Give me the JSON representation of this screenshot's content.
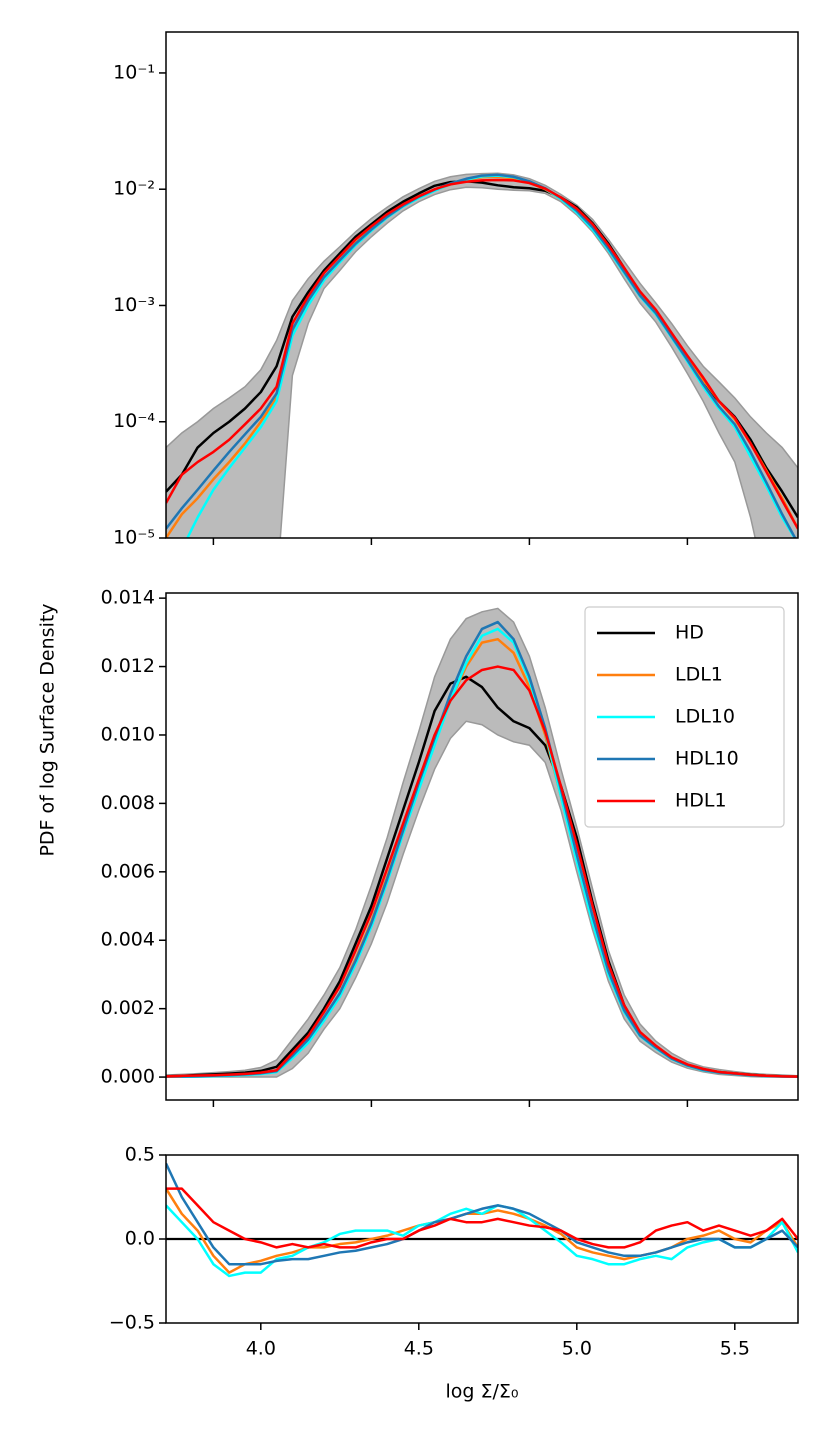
{
  "chart_data": {
    "type": "line",
    "xlabel": "log Σ/Σ₀",
    "ylabel": "PDF of log Surface Density",
    "xlim": [
      3.7,
      5.7
    ],
    "x": [
      3.7,
      3.75,
      3.8,
      3.85,
      3.9,
      3.95,
      4.0,
      4.05,
      4.1,
      4.15,
      4.2,
      4.25,
      4.3,
      4.35,
      4.4,
      4.45,
      4.5,
      4.55,
      4.6,
      4.65,
      4.7,
      4.75,
      4.8,
      4.85,
      4.9,
      4.95,
      5.0,
      5.05,
      5.1,
      5.15,
      5.2,
      5.25,
      5.3,
      5.35,
      5.4,
      5.45,
      5.5,
      5.55,
      5.6,
      5.65,
      5.7
    ],
    "band": {
      "color": "#bbbbbb",
      "lower": [
        1e-06,
        1e-06,
        1e-06,
        1e-06,
        1e-06,
        1e-06,
        1e-06,
        1e-06,
        0.00025,
        0.0007,
        0.0014,
        0.002,
        0.0029,
        0.0039,
        0.0051,
        0.0065,
        0.0078,
        0.009,
        0.0099,
        0.0104,
        0.0103,
        0.01,
        0.0098,
        0.0097,
        0.0092,
        0.0078,
        0.006,
        0.0043,
        0.0028,
        0.0017,
        0.00105,
        0.00072,
        0.00044,
        0.00026,
        0.00015,
        8e-05,
        4.5e-05,
        1.5e-05,
        1e-06,
        1e-06,
        1e-06
      ],
      "upper": [
        6e-05,
        8e-05,
        0.0001,
        0.00013,
        0.00016,
        0.0002,
        0.00028,
        0.0005,
        0.0011,
        0.0017,
        0.0024,
        0.0032,
        0.0043,
        0.0056,
        0.007,
        0.0086,
        0.0101,
        0.0117,
        0.0128,
        0.0134,
        0.0136,
        0.0137,
        0.0133,
        0.0123,
        0.0108,
        0.009,
        0.0073,
        0.0055,
        0.0037,
        0.0024,
        0.00155,
        0.00105,
        0.0007,
        0.00045,
        0.0003,
        0.00022,
        0.00016,
        0.00011,
        8e-05,
        6e-05,
        4e-05
      ]
    },
    "series": [
      {
        "name": "HD",
        "color": "#000000",
        "values": [
          2.5e-05,
          3.5e-05,
          6e-05,
          8e-05,
          0.0001,
          0.00013,
          0.00018,
          0.0003,
          0.0008,
          0.0013,
          0.002,
          0.0028,
          0.0039,
          0.005,
          0.0064,
          0.0078,
          0.0092,
          0.0107,
          0.0115,
          0.0117,
          0.0114,
          0.0108,
          0.0104,
          0.0102,
          0.0097,
          0.0085,
          0.007,
          0.0051,
          0.0034,
          0.0021,
          0.0013,
          0.0009,
          0.00055,
          0.00034,
          0.00021,
          0.00015,
          0.00011,
          7e-05,
          4e-05,
          2.5e-05,
          1.5e-05
        ]
      },
      {
        "name": "LDL1",
        "color": "#ff7f0e",
        "values": [
          1e-05,
          1.6e-05,
          2.2e-05,
          3.2e-05,
          4.5e-05,
          6.5e-05,
          0.0001,
          0.00016,
          0.00058,
          0.00108,
          0.00174,
          0.00245,
          0.00345,
          0.00455,
          0.00585,
          0.0072,
          0.0085,
          0.0098,
          0.011,
          0.012,
          0.0127,
          0.0128,
          0.0124,
          0.0114,
          0.01,
          0.0082,
          0.0064,
          0.0047,
          0.0031,
          0.00196,
          0.00124,
          0.00088,
          0.00057,
          0.00036,
          0.00023,
          0.00015,
          0.000105,
          6.5e-05,
          3.8e-05,
          2.2e-05,
          1.2e-05
        ],
        "residuals": [
          0.3,
          0.15,
          0.05,
          -0.1,
          -0.2,
          -0.15,
          -0.13,
          -0.1,
          -0.08,
          -0.05,
          -0.05,
          -0.03,
          -0.02,
          0,
          0.02,
          0.05,
          0.08,
          0.1,
          0.12,
          0.15,
          0.15,
          0.17,
          0.15,
          0.12,
          0.08,
          0.03,
          -0.05,
          -0.08,
          -0.1,
          -0.12,
          -0.1,
          -0.08,
          -0.05,
          0,
          0.02,
          0.05,
          0,
          -0.02,
          0.05,
          0.1,
          -0.05
        ]
      },
      {
        "name": "LDL10",
        "color": "#00ffff",
        "values": [
          null,
          8e-06,
          1.5e-05,
          2.6e-05,
          4e-05,
          6e-05,
          9e-05,
          0.00015,
          0.00055,
          0.001,
          0.00165,
          0.00235,
          0.0033,
          0.0044,
          0.0057,
          0.0071,
          0.0084,
          0.0097,
          0.011,
          0.0121,
          0.0129,
          0.0131,
          0.0127,
          0.0116,
          0.0101,
          0.0082,
          0.0063,
          0.0045,
          0.003,
          0.0019,
          0.0012,
          0.00084,
          0.00053,
          0.00033,
          0.0002,
          0.00013,
          9e-05,
          5e-05,
          2.8e-05,
          1.5e-05,
          9e-06
        ],
        "residuals": [
          0.2,
          0.1,
          0,
          -0.15,
          -0.22,
          -0.2,
          -0.2,
          -0.12,
          -0.1,
          -0.05,
          -0.02,
          0.03,
          0.05,
          0.05,
          0.05,
          0.02,
          0.08,
          0.1,
          0.15,
          0.18,
          0.15,
          0.2,
          0.18,
          0.12,
          0.05,
          -0.02,
          -0.1,
          -0.12,
          -0.15,
          -0.15,
          -0.12,
          -0.1,
          -0.12,
          -0.05,
          -0.02,
          0,
          -0.05,
          -0.05,
          0,
          0.1,
          -0.08
        ]
      },
      {
        "name": "HDL10",
        "color": "#1f77b4",
        "values": [
          1.2e-05,
          1.8e-05,
          2.6e-05,
          3.8e-05,
          5.5e-05,
          7.8e-05,
          0.00011,
          0.000175,
          0.00062,
          0.0011,
          0.00175,
          0.00245,
          0.0034,
          0.0045,
          0.0058,
          0.0072,
          0.0086,
          0.0099,
          0.0112,
          0.0123,
          0.0131,
          0.0133,
          0.0128,
          0.0117,
          0.0102,
          0.0084,
          0.0065,
          0.0047,
          0.0031,
          0.00195,
          0.00122,
          0.00086,
          0.00054,
          0.00034,
          0.00021,
          0.000135,
          9.5e-05,
          5.5e-05,
          3e-05,
          1.6e-05,
          9e-06
        ],
        "residuals": [
          0.45,
          0.25,
          0.1,
          -0.05,
          -0.15,
          -0.15,
          -0.15,
          -0.13,
          -0.12,
          -0.12,
          -0.1,
          -0.08,
          -0.07,
          -0.05,
          -0.03,
          0.0,
          0.05,
          0.1,
          0.12,
          0.15,
          0.18,
          0.2,
          0.18,
          0.15,
          0.1,
          0.05,
          -0.02,
          -0.05,
          -0.08,
          -0.1,
          -0.1,
          -0.08,
          -0.05,
          -0.02,
          0,
          0,
          -0.05,
          -0.05,
          0,
          0.05,
          -0.05
        ]
      },
      {
        "name": "HDL1",
        "color": "#ff0000",
        "values": [
          2e-05,
          3.5e-05,
          4.5e-05,
          5.5e-05,
          7e-05,
          9.5e-05,
          0.00013,
          0.0002,
          0.0007,
          0.0012,
          0.0019,
          0.00265,
          0.0037,
          0.0048,
          0.0061,
          0.0074,
          0.0087,
          0.01,
          0.011,
          0.0116,
          0.0119,
          0.012,
          0.0119,
          0.0113,
          0.0101,
          0.0085,
          0.0068,
          0.005,
          0.0033,
          0.0021,
          0.00132,
          0.00092,
          0.00058,
          0.00037,
          0.00024,
          0.00015,
          0.000108,
          6.5e-05,
          3.7e-05,
          2.1e-05,
          1.2e-05
        ],
        "residuals": [
          0.3,
          0.3,
          0.2,
          0.1,
          0.05,
          0,
          -0.02,
          -0.05,
          -0.03,
          -0.05,
          -0.03,
          -0.05,
          -0.05,
          -0.02,
          0,
          0.0,
          0.05,
          0.08,
          0.12,
          0.1,
          0.1,
          0.12,
          0.1,
          0.08,
          0.07,
          0.05,
          0,
          -0.03,
          -0.05,
          -0.05,
          -0.02,
          0.05,
          0.08,
          0.1,
          0.05,
          0.08,
          0.05,
          0.02,
          0.05,
          0.12,
          0
        ]
      }
    ],
    "panels": [
      {
        "log": true,
        "ylim": [
          1e-05,
          0.225
        ],
        "yticks": [
          {
            "value": 1e-05,
            "label": "10⁻⁵"
          },
          {
            "value": 0.0001,
            "label": "10⁻⁴"
          },
          {
            "value": 0.001,
            "label": "10⁻³"
          },
          {
            "value": 0.01,
            "label": "10⁻²"
          },
          {
            "value": 0.1,
            "label": "10⁻¹"
          }
        ],
        "xticks": [
          3.85,
          4.35,
          4.85,
          5.35
        ]
      },
      {
        "log": false,
        "ylim": [
          -0.00067,
          0.01415
        ],
        "legend": "upper right",
        "yticks": [
          {
            "value": 0,
            "label": "0.000"
          },
          {
            "value": 0.002,
            "label": "0.002"
          },
          {
            "value": 0.004,
            "label": "0.004"
          },
          {
            "value": 0.006,
            "label": "0.006"
          },
          {
            "value": 0.008,
            "label": "0.008"
          },
          {
            "value": 0.01,
            "label": "0.010"
          },
          {
            "value": 0.012,
            "label": "0.012"
          },
          {
            "value": 0.014,
            "label": "0.014"
          }
        ],
        "xticks": [
          3.85,
          4.35,
          4.85,
          5.35
        ]
      },
      {
        "log": false,
        "ylim": [
          -0.5,
          0.5
        ],
        "hline": 0,
        "yticks": [
          {
            "value": -0.5,
            "label": "−0.5"
          },
          {
            "value": 0,
            "label": "0.0"
          },
          {
            "value": 0.5,
            "label": "0.5"
          }
        ],
        "xticks": [
          {
            "value": 4,
            "label": "4.0"
          },
          {
            "value": 4.5,
            "label": "4.5"
          },
          {
            "value": 5,
            "label": "5.0"
          },
          {
            "value": 5.5,
            "label": "5.5"
          }
        ]
      }
    ]
  }
}
